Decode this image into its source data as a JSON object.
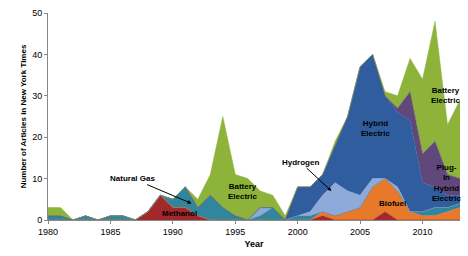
{
  "chart_data": {
    "type": "area",
    "stacked": true,
    "grid": false,
    "x_label": "Year",
    "y_label": "Number of Articles in New York Times",
    "x": [
      1980,
      1981,
      1982,
      1983,
      1984,
      1985,
      1986,
      1987,
      1988,
      1989,
      1990,
      1991,
      1992,
      1993,
      1994,
      1995,
      1996,
      1997,
      1998,
      1999,
      2000,
      2001,
      2002,
      2003,
      2004,
      2005,
      2006,
      2007,
      2008,
      2009,
      2010,
      2011,
      2012,
      2013
    ],
    "xlim": [
      1980,
      2013
    ],
    "xticks": [
      1980,
      1985,
      1990,
      1995,
      2000,
      2005,
      2010
    ],
    "ylim": [
      0,
      50
    ],
    "yticks": [
      0,
      10,
      20,
      30,
      40,
      50
    ],
    "series": [
      {
        "name": "Methanol",
        "color": "#a3282c",
        "values": [
          0,
          0,
          0,
          0,
          0,
          0,
          0,
          0,
          2,
          6,
          3,
          3,
          1,
          0,
          0,
          0,
          0,
          0,
          0,
          0,
          0,
          0,
          1,
          0,
          0,
          0,
          0,
          2,
          0,
          0,
          0,
          0,
          0,
          0
        ]
      },
      {
        "name": "Biofuel",
        "color": "#e8792a",
        "values": [
          0,
          0,
          0,
          0,
          0,
          0,
          0,
          0,
          0,
          0,
          0,
          0,
          0,
          0,
          0,
          0,
          0,
          0,
          0,
          0,
          0,
          0,
          1,
          1,
          2,
          3,
          8,
          8,
          7,
          2,
          1,
          1,
          2,
          3
        ]
      },
      {
        "name": "Natural Gas",
        "color": "#31859c",
        "values": [
          1,
          1,
          0,
          1,
          0,
          1,
          1,
          0,
          0,
          0,
          2,
          5,
          2,
          6,
          3,
          1,
          0,
          1,
          3,
          0,
          1,
          1,
          0,
          0,
          0,
          0,
          0,
          0,
          0,
          0,
          1,
          2,
          1,
          1
        ]
      },
      {
        "name": "Hydrogen",
        "color": "#8eaadb",
        "values": [
          0,
          0,
          0,
          0,
          0,
          0,
          0,
          0,
          0,
          0,
          0,
          0,
          0,
          0,
          0,
          0,
          0,
          2,
          0,
          0,
          0,
          1,
          4,
          8,
          5,
          3,
          2,
          0,
          1,
          0,
          0,
          0,
          0,
          0
        ]
      },
      {
        "name": "Hybrid Electric",
        "color": "#2f5d9e",
        "values": [
          0,
          0,
          0,
          0,
          0,
          0,
          0,
          0,
          0,
          0,
          0,
          0,
          0,
          0,
          0,
          0,
          0,
          0,
          0,
          0,
          7,
          6,
          5,
          9,
          18,
          31,
          30,
          20,
          18,
          22,
          7,
          5,
          3,
          2
        ]
      },
      {
        "name": "Plug-In Hybrid Electric",
        "color": "#60497a",
        "values": [
          0,
          0,
          0,
          0,
          0,
          0,
          0,
          0,
          0,
          0,
          0,
          0,
          0,
          0,
          0,
          0,
          0,
          0,
          0,
          0,
          0,
          0,
          0,
          0,
          0,
          0,
          0,
          0,
          1,
          7,
          7,
          11,
          5,
          4
        ]
      },
      {
        "name": "Battery Electric",
        "color": "#8db33a",
        "values": [
          2,
          2,
          0,
          0,
          0,
          0,
          0,
          0,
          0,
          0,
          0,
          0,
          2,
          5,
          22,
          10,
          10,
          4,
          3,
          1,
          0,
          0,
          0,
          1,
          0,
          0,
          0,
          1,
          3,
          8,
          18,
          29,
          12,
          19
        ]
      }
    ],
    "annotations": [
      {
        "text": "Natural Gas",
        "x": 1991.5,
        "y": 4,
        "text_x": 1986.8,
        "text_y": 10
      },
      {
        "text": "Methanol",
        "x": 1990.5,
        "y": 1.5
      },
      {
        "text": "Battery\nElectric",
        "x": 1995.6,
        "y": 7
      },
      {
        "text": "Hydrogen",
        "x": 2002.7,
        "y": 7,
        "text_x": 2000.2,
        "text_y": 14
      },
      {
        "text": "Hybrid\nElectric",
        "x": 2006.2,
        "y": 22
      },
      {
        "text": "Biofuel",
        "x": 2007.6,
        "y": 4
      },
      {
        "text": "Battery\nElectric",
        "x": 2011.8,
        "y": 30
      },
      {
        "text": "Plug-\nIn\nHybrid\nElectric",
        "x": 2011.9,
        "y": 9
      }
    ]
  }
}
